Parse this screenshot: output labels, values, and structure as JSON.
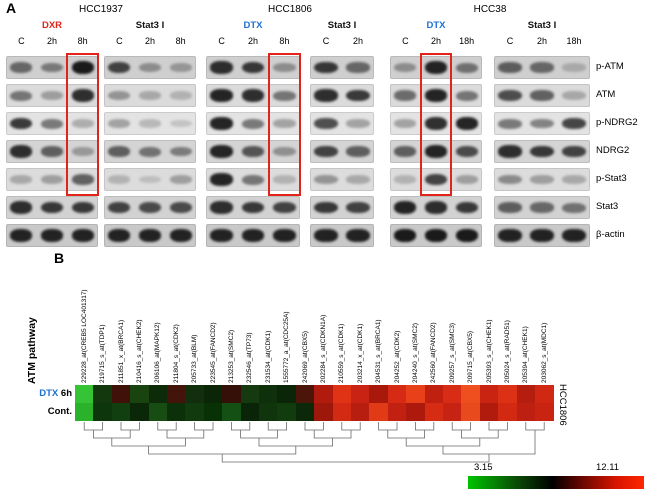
{
  "panel_a": {
    "label": "A",
    "proteins": [
      "p-ATM",
      "ATM",
      "p-NDRG2",
      "NDRG2",
      "p-Stat3",
      "Stat3",
      "β-actin"
    ],
    "groups": [
      {
        "cell_line": "HCC1937",
        "treatments": [
          {
            "name": "DXR",
            "color": "#e3231a",
            "lanes": [
              "C",
              "2h",
              "8h"
            ],
            "highlight_lane": 2
          },
          {
            "name": "Stat3 I",
            "color": "#111111",
            "lanes": [
              "C",
              "2h",
              "8h"
            ],
            "highlight_lane": -1
          }
        ]
      },
      {
        "cell_line": "HCC1806",
        "treatments": [
          {
            "name": "DTX",
            "color": "#1f6fd4",
            "lanes": [
              "C",
              "2h",
              "8h"
            ],
            "highlight_lane": 2
          },
          {
            "name": "Stat3 I",
            "color": "#111111",
            "lanes": [
              "C",
              "2h"
            ],
            "highlight_lane": -1
          }
        ]
      },
      {
        "cell_line": "HCC38",
        "treatments": [
          {
            "name": "DTX",
            "color": "#1f6fd4",
            "lanes": [
              "C",
              "2h",
              "18h"
            ],
            "highlight_lane": 1
          },
          {
            "name": "Stat3 I",
            "color": "#111111",
            "lanes": [
              "C",
              "2h",
              "18h"
            ],
            "highlight_lane": -1
          }
        ]
      }
    ],
    "bands": [
      [
        [
          0.55,
          0.45,
          0.95
        ],
        [
          0.75,
          0.35,
          0.3
        ],
        [
          0.85,
          0.8,
          0.35
        ],
        [
          0.8,
          0.55
        ],
        [
          0.35,
          0.9,
          0.5
        ],
        [
          0.6,
          0.55,
          0.2
        ]
      ],
      [
        [
          0.5,
          0.3,
          0.85
        ],
        [
          0.35,
          0.25,
          0.2
        ],
        [
          0.9,
          0.85,
          0.5
        ],
        [
          0.85,
          0.8
        ],
        [
          0.55,
          0.9,
          0.5
        ],
        [
          0.7,
          0.6,
          0.25
        ]
      ],
      [
        [
          0.8,
          0.5,
          0.25
        ],
        [
          0.3,
          0.2,
          0.15
        ],
        [
          0.9,
          0.5,
          0.3
        ],
        [
          0.7,
          0.3
        ],
        [
          0.3,
          0.85,
          0.9
        ],
        [
          0.5,
          0.45,
          0.75
        ]
      ],
      [
        [
          0.85,
          0.6,
          0.3
        ],
        [
          0.6,
          0.5,
          0.45
        ],
        [
          0.9,
          0.65,
          0.35
        ],
        [
          0.75,
          0.6
        ],
        [
          0.6,
          0.9,
          0.7
        ],
        [
          0.85,
          0.8,
          0.75
        ]
      ],
      [
        [
          0.25,
          0.3,
          0.6
        ],
        [
          0.2,
          0.15,
          0.3
        ],
        [
          0.9,
          0.5,
          0.2
        ],
        [
          0.35,
          0.25
        ],
        [
          0.2,
          0.75,
          0.3
        ],
        [
          0.4,
          0.3,
          0.25
        ]
      ],
      [
        [
          0.85,
          0.8,
          0.8
        ],
        [
          0.75,
          0.7,
          0.7
        ],
        [
          0.85,
          0.8,
          0.75
        ],
        [
          0.8,
          0.75
        ],
        [
          0.9,
          0.85,
          0.8
        ],
        [
          0.6,
          0.55,
          0.5
        ]
      ],
      [
        [
          0.9,
          0.9,
          0.9
        ],
        [
          0.9,
          0.9,
          0.9
        ],
        [
          0.9,
          0.9,
          0.9
        ],
        [
          0.9,
          0.9
        ],
        [
          0.95,
          0.95,
          0.95
        ],
        [
          0.9,
          0.9,
          0.9
        ]
      ]
    ]
  },
  "panel_b": {
    "label": "B",
    "pathway_label": "ATM pathway",
    "cell_line_label": "HCC1806",
    "row_labels": [
      [
        {
          "text": "DTX",
          "color": "#1f6fd4"
        },
        {
          "text": " 6h",
          "color": "#000000"
        }
      ],
      [
        {
          "text": "Cont.",
          "color": "#000000"
        }
      ]
    ],
    "scale": {
      "min": "3.15",
      "max": "12.11"
    }
  },
  "chart_data": {
    "type": "heatmap",
    "title": "ATM pathway",
    "rows": [
      "DTX 6h",
      "Cont."
    ],
    "columns": [
      "229228_at(CREB5 LOC401317)",
      "219715_s_at(TDP1)",
      "211851_x_at(BRCA1)",
      "210416_s_at(CHEK2)",
      "206106_at(MAPK12)",
      "211804_s_at(CDK2)",
      "205733_at(BLM)",
      "223545_at(FANCD2)",
      "213253_at(SMC2)",
      "232546_at(TP73)",
      "231534_at(CDK1)",
      "1555772_a_at(CDC25A)",
      "242069_at(CBX5)",
      "202284_s_at(CDKN1A)",
      "210559_s_at(CDK1)",
      "203214_x_at(CDK1)",
      "204531_s_at(BRCA1)",
      "204252_at(CDK2)",
      "204240_s_at(SMC2)",
      "242560_at(FANCD2)",
      "209257_s_at(SMC3)",
      "209715_at(CBX5)",
      "205393_s_at(CHEK1)",
      "205024_s_at(RAD51)",
      "205394_at(CHEK1)",
      "203062_s_at(MDC1)"
    ],
    "scale_min": 3.15,
    "scale_max": 12.11,
    "legend_position": "bottom-right",
    "dendrogram": true,
    "cell_colors": [
      [
        "#35c435",
        "#14380e",
        "#401108",
        "#19430f",
        "#0d2b09",
        "#431409",
        "#122f0d",
        "#0a2607",
        "#351008",
        "#153a10",
        "#0e300b",
        "#0b2508",
        "#4c1509",
        "#b01b0d",
        "#e03315",
        "#c92413",
        "#a8190c",
        "#d62a14",
        "#e84019",
        "#bf2010",
        "#d82c15",
        "#ef4f1e",
        "#c92312",
        "#dd3116",
        "#b51d0e",
        "#d02813"
      ],
      [
        "#2ab32a",
        "#0e360c",
        "#123f0f",
        "#0a2808",
        "#174c12",
        "#0c300a",
        "#113a0e",
        "#093106",
        "#145013",
        "#0a2408",
        "#10340c",
        "#123c0e",
        "#0b2909",
        "#9e170b",
        "#d32a14",
        "#b81e0f",
        "#e03a17",
        "#c22111",
        "#ad1a0d",
        "#d62c14",
        "#c62312",
        "#e84a1d",
        "#b01b0e",
        "#d22913",
        "#bd1f10",
        "#c92412"
      ]
    ]
  }
}
